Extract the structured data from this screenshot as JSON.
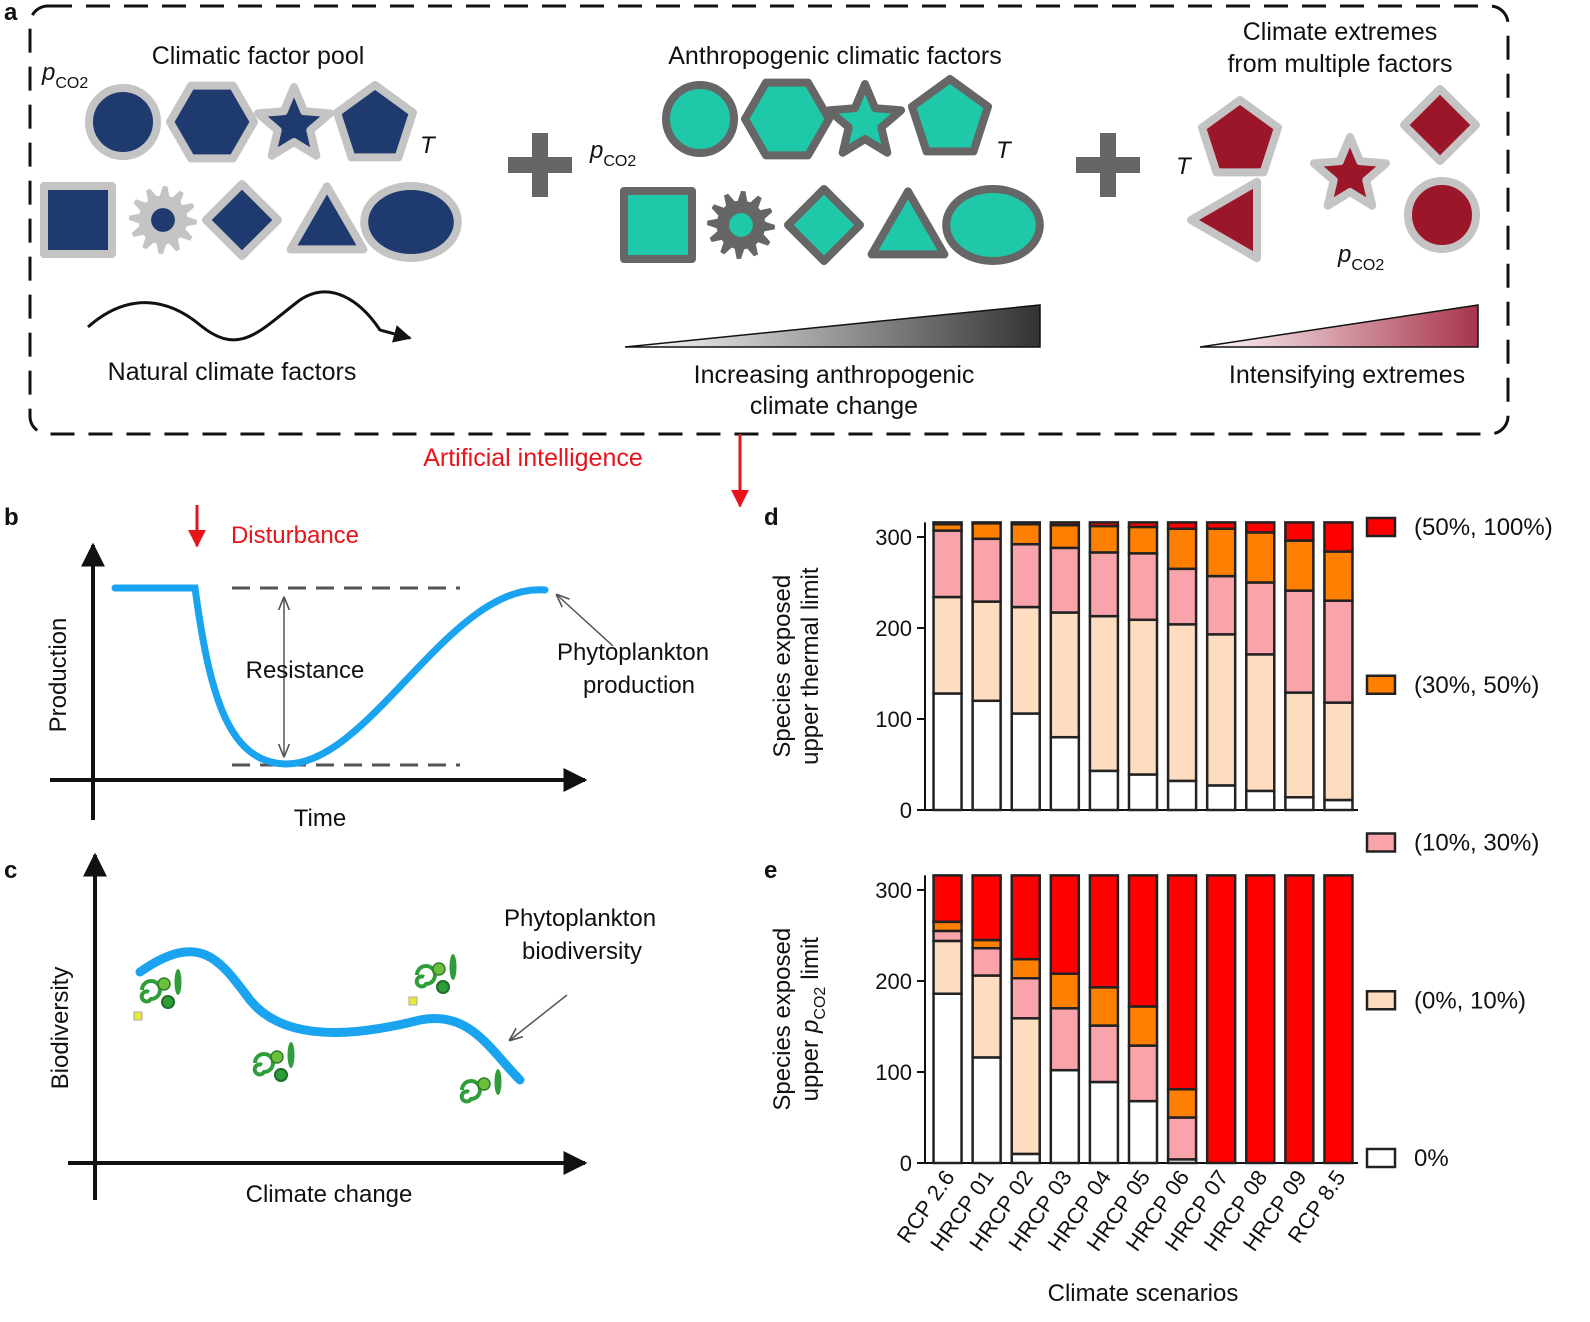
{
  "panel_labels": [
    "a",
    "b",
    "c",
    "d",
    "e"
  ],
  "panel_a": {
    "pool_title": "Climatic factor pool",
    "anthropogenic_title": "Anthropogenic climatic factors",
    "extremes_title": [
      "Climate extremes",
      "from multiple factors"
    ],
    "natural_caption": "Natural climate factors",
    "increasing_caption": [
      "Increasing anthropogenic",
      "climate change"
    ],
    "intensifying_caption": "Intensifying extremes",
    "temperature_symbol": "T",
    "pco2_symbol": {
      "p": "p",
      "sub": "CO2"
    }
  },
  "ai_label": "Artificial intelligence",
  "panel_b": {
    "disturbance": "Disturbance",
    "resistance": "Resistance",
    "curve_label": [
      "Phytoplankton",
      "production"
    ],
    "y_label": "Production",
    "x_label": "Time"
  },
  "panel_c": {
    "curve_label": [
      "Phytoplankton",
      "biodiversity"
    ],
    "y_label": "Biodiversity",
    "x_label": "Climate change"
  },
  "chart_data": [
    {
      "type": "stacked_bar",
      "ylim": [
        0,
        316
      ],
      "yticks": [
        0,
        100,
        200,
        300
      ],
      "y_label": [
        "Species exposed",
        "upper thermal limit"
      ],
      "series": [
        {
          "name": "0%",
          "color": "#ffffff",
          "values": [
            128,
            120,
            106,
            80,
            43,
            39,
            32,
            27,
            21,
            14,
            11
          ]
        },
        {
          "name": "(0%, 10%)",
          "color": "#fddcc0",
          "values": [
            106,
            109,
            117,
            137,
            170,
            170,
            172,
            166,
            150,
            115,
            107
          ]
        },
        {
          "name": "(10%, 30%)",
          "color": "#f9a3aa",
          "values": [
            73,
            69,
            69,
            71,
            70,
            73,
            61,
            64,
            79,
            112,
            112
          ]
        },
        {
          "name": "(30%, 50%)",
          "color": "#ff8000",
          "values": [
            7,
            17,
            22,
            25,
            29,
            29,
            44,
            52,
            55,
            55,
            54
          ]
        },
        {
          "name": "(50%, 100%)",
          "color": "#ff0000",
          "values": [
            2,
            1,
            2,
            3,
            4,
            5,
            7,
            7,
            11,
            20,
            32
          ]
        }
      ]
    },
    {
      "type": "stacked_bar",
      "ylim": [
        0,
        316
      ],
      "yticks": [
        0,
        100,
        200,
        300
      ],
      "y_label": [
        "Species exposed",
        {
          "before": "upper",
          "p": "p",
          "sub": "CO2",
          "after": "limit"
        }
      ],
      "x_label": "Climate scenarios",
      "categories": [
        "RCP 2.6",
        "HRCP 01",
        "HRCP 02",
        "HRCP 03",
        "HRCP 04",
        "HRCP 05",
        "HRCP 06",
        "HRCP 07",
        "HRCP 08",
        "HRCP 09",
        "RCP 8.5"
      ],
      "series": [
        {
          "color": "#ffffff",
          "values": [
            186,
            116,
            10,
            102,
            89,
            68,
            4,
            0,
            0,
            0,
            0
          ]
        },
        {
          "color": "#fddcc0",
          "values": [
            58,
            90,
            149,
            0,
            0,
            0,
            0,
            0,
            0,
            0,
            0
          ]
        },
        {
          "color": "#f9a3aa",
          "values": [
            11,
            30,
            44,
            68,
            62,
            61,
            46,
            0,
            0,
            0,
            0
          ]
        },
        {
          "color": "#ff8000",
          "values": [
            10,
            9,
            21,
            38,
            42,
            43,
            31,
            0,
            0,
            0,
            0
          ]
        },
        {
          "color": "#ff0000",
          "values": [
            51,
            71,
            92,
            108,
            123,
            144,
            235,
            316,
            316,
            316,
            316
          ]
        }
      ]
    }
  ]
}
